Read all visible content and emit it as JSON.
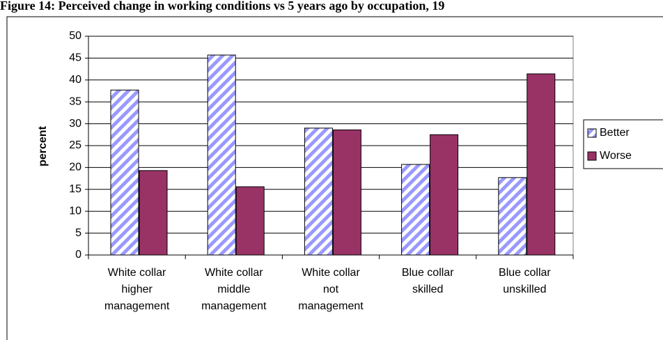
{
  "chart_data": {
    "type": "bar",
    "title": "Figure 14: Perceived change in working conditions vs 5 years ago by occupation, 19",
    "y_label": "percent",
    "categories": [
      "White collar\nhigher\nmanagement",
      "White collar\nmiddle\nmanagement",
      "White collar\nnot\nmanagement",
      "Blue collar\nskilled",
      "Blue collar\nunskilled"
    ],
    "series": [
      {
        "name": "Better",
        "color": "#9999ff",
        "pattern": "diagonal-stripes",
        "values": [
          37.7,
          45.7,
          29.0,
          20.7,
          17.7
        ]
      },
      {
        "name": "Worse",
        "color": "#993366",
        "values": [
          19.3,
          15.6,
          28.6,
          27.5,
          41.4
        ]
      }
    ],
    "ylim": [
      0,
      50
    ],
    "yticks": [
      0,
      5,
      10,
      15,
      20,
      25,
      30,
      35,
      40,
      45,
      50
    ],
    "grid": true,
    "legend": "right"
  }
}
